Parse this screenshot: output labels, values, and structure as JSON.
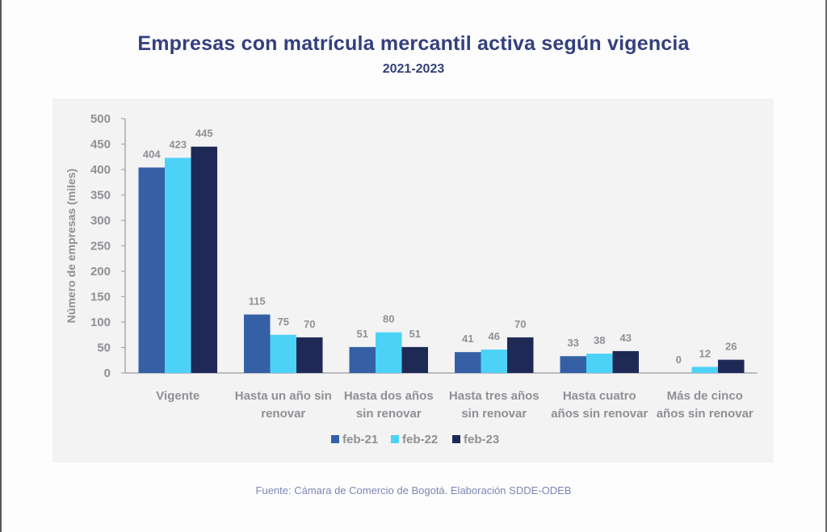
{
  "colors": {
    "title": "#34407c",
    "axis_text": "#8e9094",
    "axis_line": "#a7a9ad",
    "panel": "#f3f3f4",
    "source_text": "#7d86b2"
  },
  "source": "Fuente: Cámara de Comercio de Bogotá. Elaboración SDDE-ODEB",
  "chart_data": {
    "type": "bar",
    "title": "Empresas con matrícula mercantil activa según vigencia",
    "subtitle": "2021-2023",
    "xlabel": "",
    "ylabel": "Número de empresas (miles)",
    "ylim": [
      0,
      500
    ],
    "yticks": [
      0,
      50,
      100,
      150,
      200,
      250,
      300,
      350,
      400,
      450,
      500
    ],
    "grid": false,
    "legend_position": "bottom",
    "categories": [
      [
        "Vigente"
      ],
      [
        "Hasta un año sin",
        "renovar"
      ],
      [
        "Hasta dos años",
        "sin renovar"
      ],
      [
        "Hasta tres años",
        "sin renovar"
      ],
      [
        "Hasta cuatro",
        "años sin renovar"
      ],
      [
        "Más de cinco",
        "años sin renovar"
      ]
    ],
    "series": [
      {
        "name": "feb-21",
        "color": "#3560a6",
        "values": [
          404,
          115,
          51,
          41,
          33,
          0
        ]
      },
      {
        "name": "feb-22",
        "color": "#4dd2f7",
        "values": [
          423,
          75,
          80,
          46,
          38,
          12
        ]
      },
      {
        "name": "feb-23",
        "color": "#1e2a55",
        "values": [
          445,
          70,
          51,
          70,
          43,
          26
        ]
      }
    ]
  }
}
